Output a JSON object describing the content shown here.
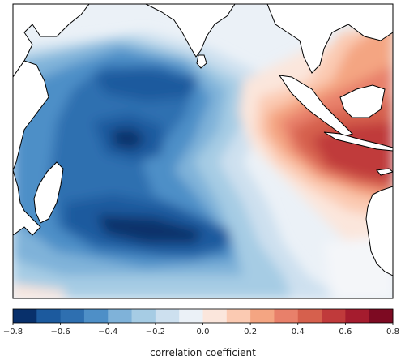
{
  "figure": {
    "region": "Indian Ocean",
    "field": "correlation map"
  },
  "colorbar": {
    "label": "correlation coefficient",
    "ticks": [
      "−0.8",
      "−0.6",
      "−0.4",
      "−0.2",
      "0.0",
      "0.2",
      "0.4",
      "0.6",
      "0.8"
    ],
    "levels": [
      -0.8,
      -0.7,
      -0.6,
      -0.5,
      -0.4,
      -0.3,
      -0.2,
      -0.1,
      0.0,
      0.1,
      0.2,
      0.3,
      0.4,
      0.5,
      0.6,
      0.7,
      0.8
    ],
    "colors": [
      "#08306b",
      "#1c5a9e",
      "#2e6fb0",
      "#4e8fc7",
      "#7fb2d9",
      "#a6cce4",
      "#cde0ef",
      "#ebf1f7",
      "#fbe6dc",
      "#fbcab2",
      "#f4a582",
      "#e8806a",
      "#d6604d",
      "#c03a3b",
      "#a51c2e",
      "#7d0a22"
    ]
  },
  "palette": {
    "land": "#ffffff",
    "coast": "#000000",
    "frame": "#000000"
  }
}
